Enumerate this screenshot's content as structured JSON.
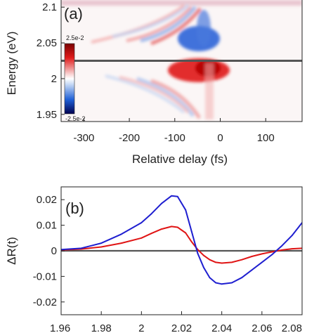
{
  "chart_data": [
    {
      "panel_label": "(a)",
      "type": "heatmap",
      "xlabel": "Relative delay (fs)",
      "ylabel": "Energy (eV)",
      "xlim": [
        -350,
        180
      ],
      "ylim": [
        1.94,
        2.11
      ],
      "x_ticks": [
        "-300",
        "-200",
        "-100",
        "0",
        "100"
      ],
      "x_tick_values": [
        -300,
        -200,
        -100,
        0,
        100
      ],
      "y_ticks": [
        "1.95",
        "2",
        "2.05",
        "2.1"
      ],
      "y_tick_values": [
        1.95,
        2.0,
        2.05,
        2.1
      ],
      "horizontal_line_energy": 2.025,
      "colorbar": {
        "max_label": "2.5e-2",
        "min_label": "-2.5e-2",
        "max": 0.025,
        "min": -0.025
      },
      "features": [
        {
          "sign": "positive",
          "description": "dominant red lobe",
          "energy_center": 2.01,
          "delay_peak": -30,
          "peak_value": 0.025
        },
        {
          "sign": "negative",
          "description": "blue lobe above line",
          "energy_center": 2.04,
          "delay_peak": -55,
          "peak_value": -0.022
        },
        {
          "sign": "positive",
          "description": "red perturbed free-induction-decay fringes above line",
          "energy_range": [
            2.045,
            2.1
          ]
        },
        {
          "sign": "negative",
          "description": "blue fringes below line",
          "energy_range": [
            1.96,
            2.005
          ]
        }
      ]
    },
    {
      "panel_label": "(b)",
      "type": "line",
      "ylabel": "ΔR(t)",
      "xlim": [
        1.96,
        2.08
      ],
      "ylim": [
        -0.025,
        0.025
      ],
      "x_ticks": [
        "1.96",
        "1.98",
        "2",
        "2.02",
        "2.04",
        "2.06",
        "2.08"
      ],
      "x_tick_values": [
        1.96,
        1.98,
        2.0,
        2.02,
        2.04,
        2.06,
        2.08
      ],
      "y_ticks": [
        "0.02",
        "0.01",
        "0",
        "-0.01",
        "-0.02"
      ],
      "y_tick_values": [
        0.02,
        0.01,
        0,
        -0.01,
        -0.02
      ],
      "zero_line": 0,
      "series": [
        {
          "color": "#1f1fd0",
          "x": [
            1.96,
            1.97,
            1.98,
            1.99,
            2.0,
            2.005,
            2.01,
            2.015,
            2.018,
            2.022,
            2.025,
            2.028,
            2.031,
            2.034,
            2.037,
            2.04,
            2.045,
            2.05,
            2.055,
            2.06,
            2.065,
            2.07,
            2.075,
            2.08
          ],
          "values": [
            0.0005,
            0.001,
            0.003,
            0.0065,
            0.011,
            0.0145,
            0.0185,
            0.0215,
            0.0212,
            0.016,
            0.0075,
            -0.001,
            -0.0065,
            -0.0105,
            -0.0125,
            -0.013,
            -0.0125,
            -0.0105,
            -0.0075,
            -0.0045,
            -0.0015,
            0.002,
            0.006,
            0.011
          ]
        },
        {
          "color": "#e01414",
          "x": [
            1.96,
            1.97,
            1.98,
            1.99,
            2.0,
            2.005,
            2.01,
            2.015,
            2.018,
            2.022,
            2.025,
            2.028,
            2.031,
            2.034,
            2.037,
            2.04,
            2.045,
            2.05,
            2.055,
            2.06,
            2.065,
            2.07,
            2.075,
            2.08
          ],
          "values": [
            0.0003,
            0.0007,
            0.0015,
            0.003,
            0.005,
            0.0068,
            0.0085,
            0.0095,
            0.0092,
            0.007,
            0.0035,
            0.0005,
            -0.0018,
            -0.0035,
            -0.0045,
            -0.0048,
            -0.0045,
            -0.0035,
            -0.0022,
            -0.0012,
            -0.0004,
            0.0003,
            0.0008,
            0.001
          ]
        }
      ]
    }
  ]
}
